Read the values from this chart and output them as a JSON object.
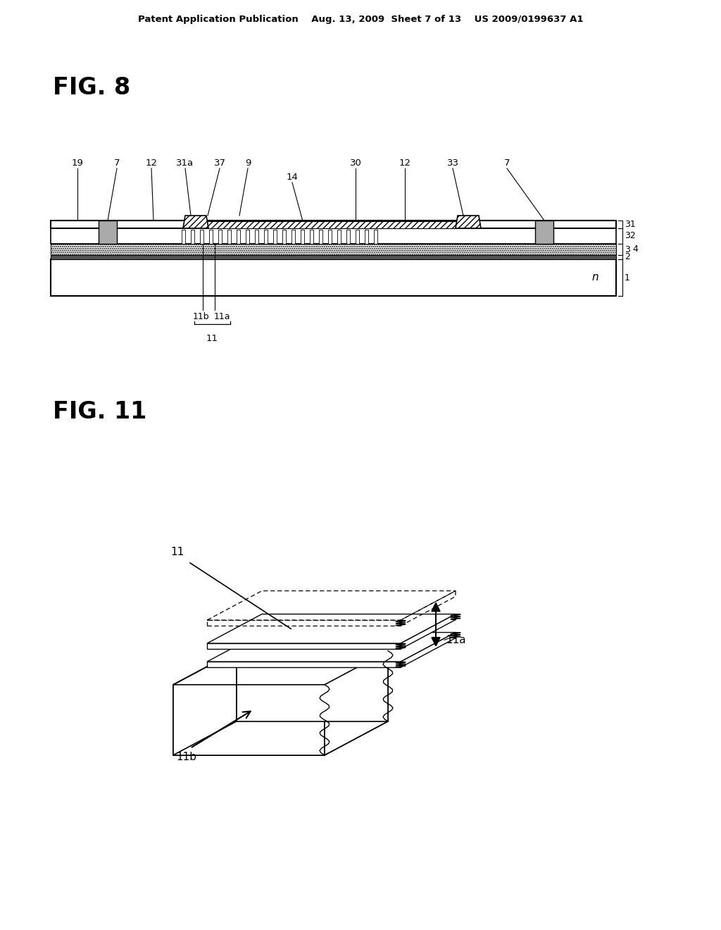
{
  "bg_color": "#ffffff",
  "header_text": "Patent Application Publication    Aug. 13, 2009  Sheet 7 of 13    US 2009/0199637 A1",
  "fig8_title": "FIG. 8",
  "fig11_title": "FIG. 11",
  "text_color": "#000000",
  "line_color": "#000000"
}
